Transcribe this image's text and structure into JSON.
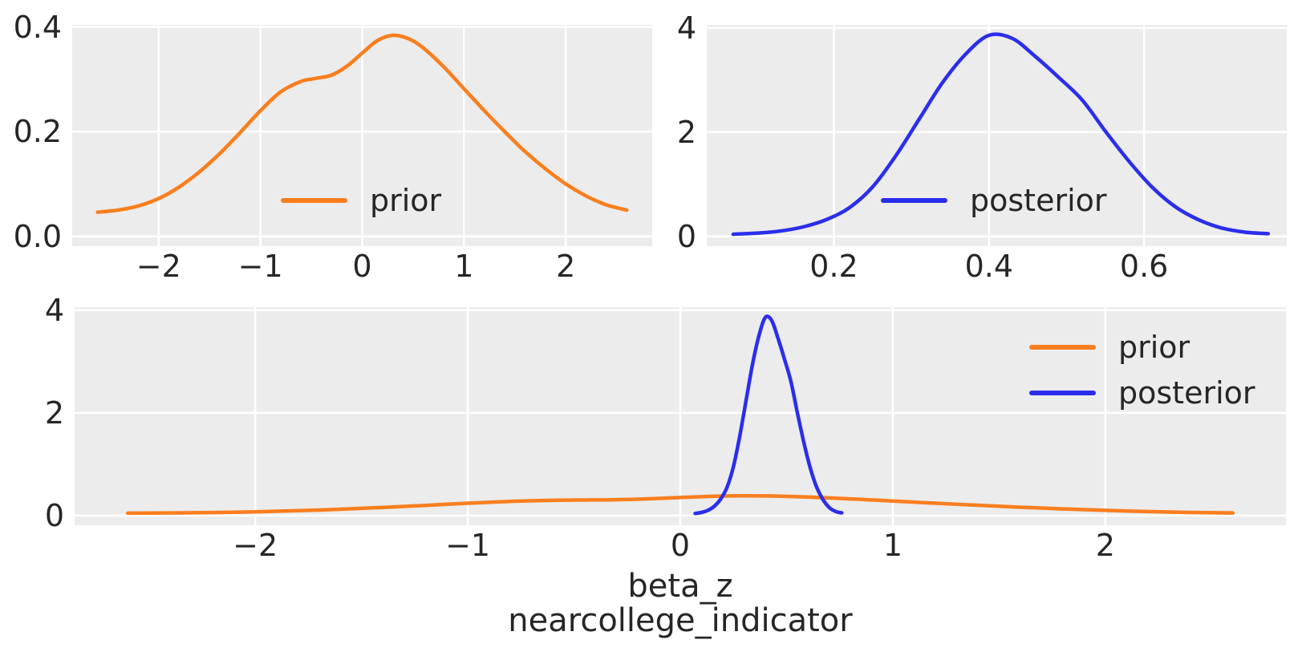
{
  "figure": {
    "background": "#ffffff",
    "panel_background": "#ececec",
    "grid_color": "#ffffff",
    "text_color": "#262626",
    "accent_colors": {
      "prior": "#fa7e1e",
      "posterior": "#2a2eec"
    },
    "xlabel_line1": "beta_z",
    "xlabel_line2": "nearcollege_indicator"
  },
  "chart_data": [
    {
      "id": "prior-marginal",
      "type": "line",
      "title": "",
      "xlabel": "",
      "ylabel": "",
      "xlim": [
        -2.85,
        2.85
      ],
      "ylim": [
        -0.019,
        0.404
      ],
      "grid": true,
      "xticks": {
        "values": [
          -2,
          -1,
          0,
          1,
          2
        ],
        "labels": [
          "−2",
          "−1",
          "0",
          "1",
          "2"
        ]
      },
      "yticks": {
        "values": [
          0.0,
          0.2,
          0.4
        ],
        "labels": [
          "0.0",
          "0.2",
          "0.4"
        ]
      },
      "legend": {
        "position": "lower center",
        "entries": [
          {
            "label": "prior",
            "color": "#fa7e1e"
          }
        ]
      },
      "series": [
        {
          "name": "prior",
          "color": "#fa7e1e",
          "x": [
            -2.6,
            -2.4,
            -2.2,
            -2.0,
            -1.8,
            -1.6,
            -1.4,
            -1.2,
            -1.0,
            -0.8,
            -0.6,
            -0.45,
            -0.3,
            -0.15,
            0,
            0.15,
            0.3,
            0.45,
            0.6,
            0.8,
            1.0,
            1.2,
            1.4,
            1.6,
            1.8,
            2.0,
            2.2,
            2.4,
            2.6
          ],
          "y": [
            0.046,
            0.05,
            0.058,
            0.072,
            0.094,
            0.123,
            0.158,
            0.198,
            0.24,
            0.276,
            0.296,
            0.302,
            0.308,
            0.325,
            0.35,
            0.374,
            0.384,
            0.378,
            0.36,
            0.324,
            0.282,
            0.24,
            0.2,
            0.162,
            0.129,
            0.1,
            0.077,
            0.06,
            0.05
          ]
        }
      ]
    },
    {
      "id": "posterior-marginal",
      "type": "line",
      "title": "",
      "xlabel": "",
      "ylabel": "",
      "xlim": [
        0.036,
        0.784
      ],
      "ylim": [
        -0.19,
        4.06
      ],
      "grid": true,
      "xticks": {
        "values": [
          0.2,
          0.4,
          0.6
        ],
        "labels": [
          "0.2",
          "0.4",
          "0.6"
        ]
      },
      "yticks": {
        "values": [
          0,
          2,
          4
        ],
        "labels": [
          "0",
          "2",
          "4"
        ]
      },
      "legend": {
        "position": "lower center",
        "entries": [
          {
            "label": "posterior",
            "color": "#2a2eec"
          }
        ]
      },
      "series": [
        {
          "name": "posterior",
          "color": "#2a2eec",
          "x": [
            0.07,
            0.1,
            0.13,
            0.16,
            0.19,
            0.22,
            0.25,
            0.28,
            0.31,
            0.34,
            0.37,
            0.4,
            0.43,
            0.46,
            0.49,
            0.52,
            0.55,
            0.58,
            0.61,
            0.64,
            0.67,
            0.7,
            0.73,
            0.76
          ],
          "y": [
            0.04,
            0.06,
            0.1,
            0.18,
            0.32,
            0.55,
            0.95,
            1.55,
            2.25,
            2.95,
            3.5,
            3.86,
            3.8,
            3.45,
            3.05,
            2.62,
            2.02,
            1.45,
            0.95,
            0.57,
            0.32,
            0.16,
            0.08,
            0.05
          ]
        }
      ]
    },
    {
      "id": "prior-posterior-overlay",
      "type": "line",
      "title": "",
      "xlabel": "beta_z\nnearcollege_indicator",
      "ylabel": "",
      "xlim": [
        -2.85,
        2.85
      ],
      "ylim": [
        -0.19,
        4.06
      ],
      "grid": true,
      "xticks": {
        "values": [
          -2,
          -1,
          0,
          1,
          2
        ],
        "labels": [
          "−2",
          "−1",
          "0",
          "1",
          "2"
        ]
      },
      "yticks": {
        "values": [
          0,
          2,
          4
        ],
        "labels": [
          "0",
          "2",
          "4"
        ]
      },
      "legend": {
        "position": "upper right",
        "entries": [
          {
            "label": "prior",
            "color": "#fa7e1e"
          },
          {
            "label": "posterior",
            "color": "#2a2eec"
          }
        ]
      },
      "series": [
        {
          "name": "prior",
          "color": "#fa7e1e",
          "x": [
            -2.6,
            -2.4,
            -2.2,
            -2.0,
            -1.8,
            -1.6,
            -1.4,
            -1.2,
            -1.0,
            -0.8,
            -0.6,
            -0.45,
            -0.3,
            -0.15,
            0,
            0.15,
            0.3,
            0.45,
            0.6,
            0.8,
            1.0,
            1.2,
            1.4,
            1.6,
            1.8,
            2.0,
            2.2,
            2.4,
            2.6
          ],
          "y": [
            0.046,
            0.05,
            0.058,
            0.072,
            0.094,
            0.123,
            0.158,
            0.198,
            0.24,
            0.276,
            0.296,
            0.302,
            0.308,
            0.325,
            0.35,
            0.374,
            0.384,
            0.378,
            0.36,
            0.324,
            0.282,
            0.24,
            0.2,
            0.162,
            0.129,
            0.1,
            0.077,
            0.06,
            0.05
          ]
        },
        {
          "name": "posterior",
          "color": "#2a2eec",
          "x": [
            0.07,
            0.1,
            0.13,
            0.16,
            0.19,
            0.22,
            0.25,
            0.28,
            0.31,
            0.34,
            0.37,
            0.4,
            0.43,
            0.46,
            0.49,
            0.52,
            0.55,
            0.58,
            0.61,
            0.64,
            0.67,
            0.7,
            0.73,
            0.76
          ],
          "y": [
            0.04,
            0.06,
            0.1,
            0.18,
            0.32,
            0.55,
            0.95,
            1.55,
            2.25,
            2.95,
            3.5,
            3.86,
            3.8,
            3.45,
            3.05,
            2.62,
            2.02,
            1.45,
            0.95,
            0.57,
            0.32,
            0.16,
            0.08,
            0.05
          ]
        }
      ]
    }
  ]
}
